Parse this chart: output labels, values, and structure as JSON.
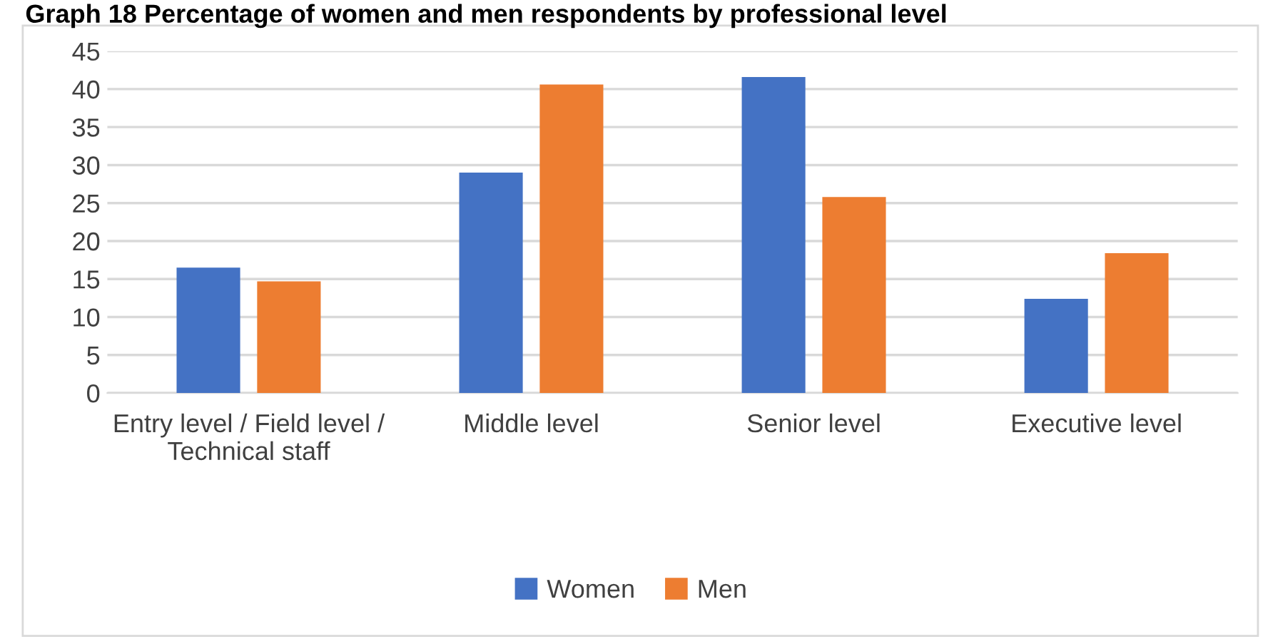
{
  "chart_data": {
    "type": "bar",
    "title": "Graph 18 Percentage of women and men respondents by professional level",
    "categories": [
      "Entry level / Field level / Technical staff",
      "Middle level",
      "Senior level",
      "Executive level"
    ],
    "series": [
      {
        "name": "Women",
        "color": "#4472c4",
        "values": [
          16.5,
          29.0,
          41.6,
          12.4
        ]
      },
      {
        "name": "Men",
        "color": "#ed7d31",
        "values": [
          14.7,
          40.6,
          25.8,
          18.4
        ]
      }
    ],
    "ylim": [
      0,
      45
    ],
    "yticks": [
      0,
      5,
      10,
      15,
      20,
      25,
      30,
      35,
      40,
      45
    ],
    "grid": "y",
    "legend": "bottom"
  }
}
